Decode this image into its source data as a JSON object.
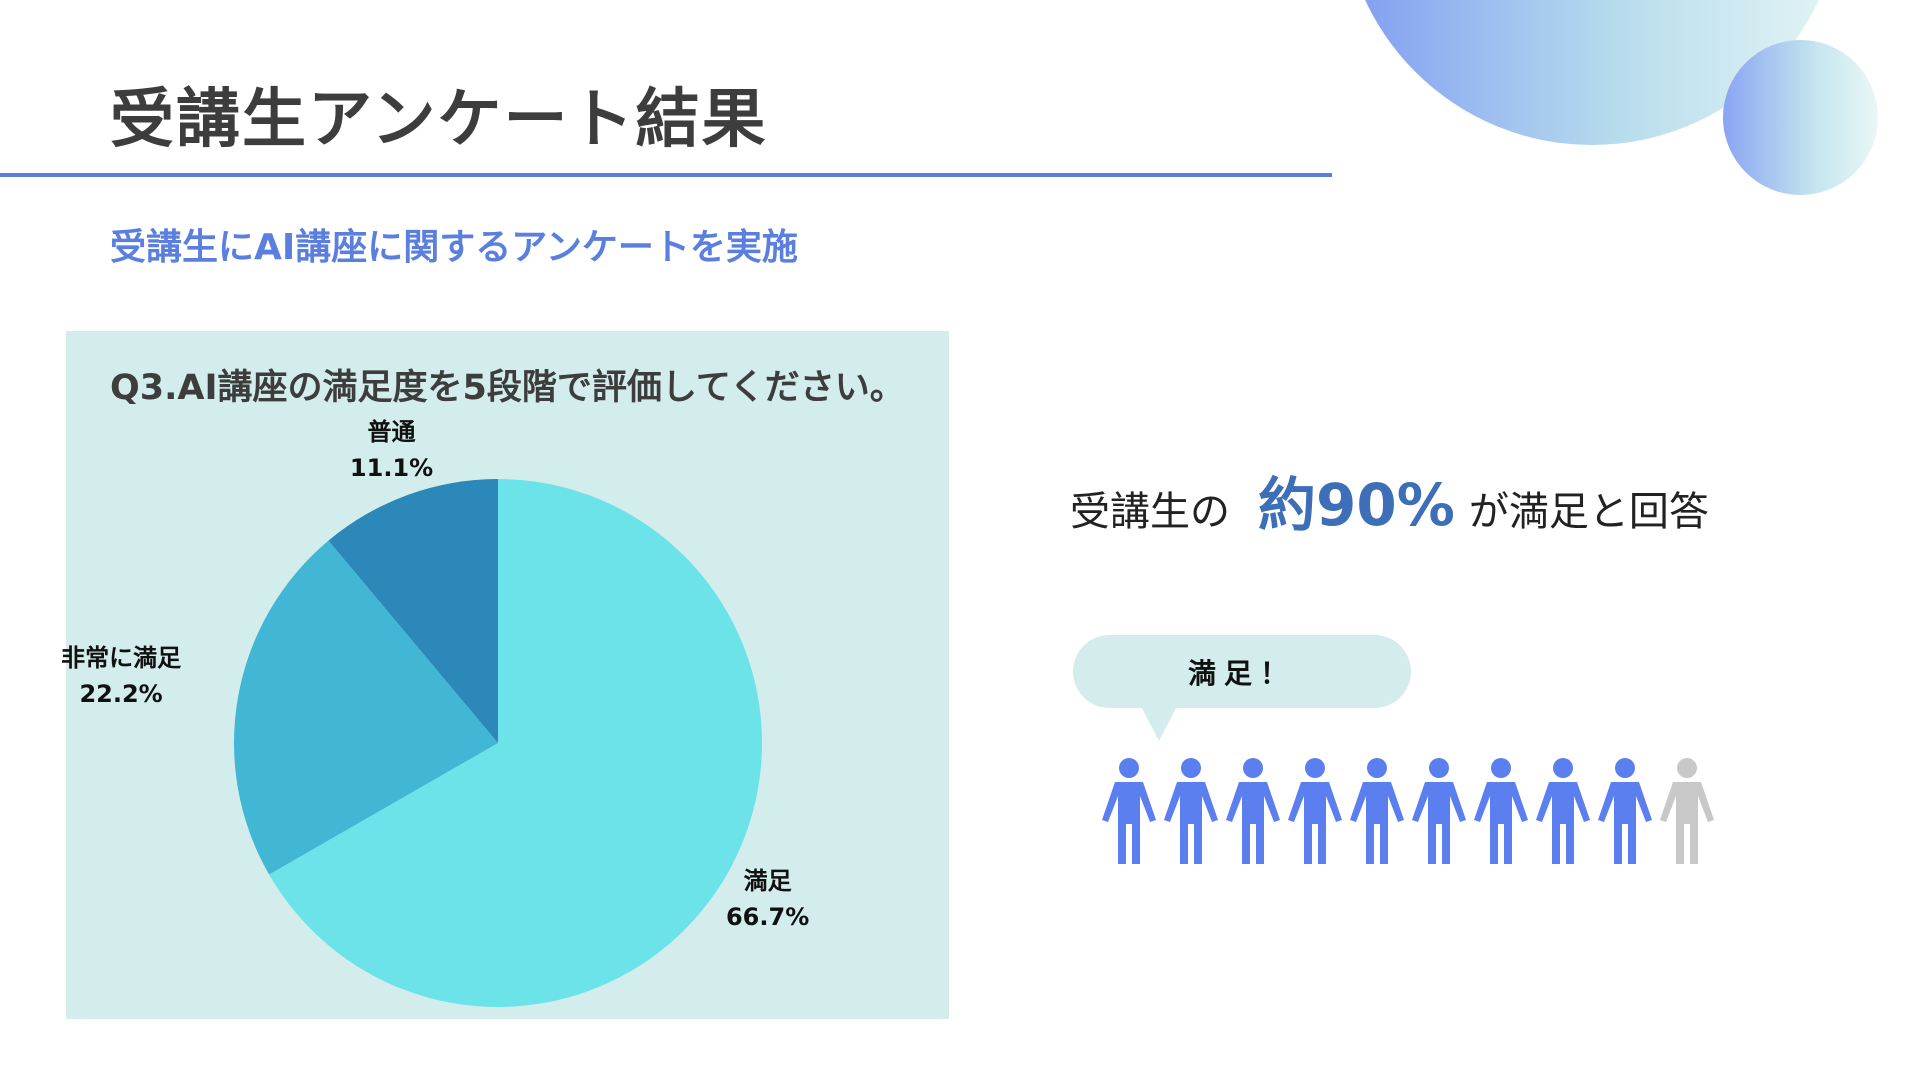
{
  "page": {
    "title": "受講生アンケート結果",
    "subtitle": "受講生にAI講座に関するアンケートを実施"
  },
  "chart_data": {
    "type": "pie",
    "title": "Q3.AI講座の満足度を5段階で評価してください。",
    "slices": [
      {
        "label": "満足",
        "value": 66.7,
        "value_label": "66.7%",
        "color": "#6ce3e8"
      },
      {
        "label": "非常に満足",
        "value": 22.2,
        "value_label": "22.2%",
        "color": "#42b6d5"
      },
      {
        "label": "普通",
        "value": 11.1,
        "value_label": "11.1%",
        "color": "#2b88b8"
      }
    ]
  },
  "summary": {
    "prefix": "受講生の",
    "highlight": "約90%",
    "suffix": "が満足と回答",
    "bubble_text": "満足！",
    "people_total": 10,
    "people_satisfied": 9,
    "satisfied_color": "#5b7fef",
    "other_color": "#c8c8c8"
  },
  "colors": {
    "accent": "#5b7fde",
    "panel_bg": "#d3ecec",
    "highlight_text": "#3d6eb8"
  }
}
